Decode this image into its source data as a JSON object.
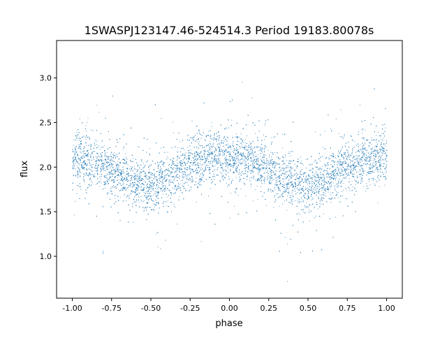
{
  "chart_data": {
    "type": "scatter",
    "title": "1SWASPJ123147.46-524514.3 Period 19183.80078s",
    "xlabel": "phase",
    "ylabel": "flux",
    "xlim": [
      -1.1,
      1.1
    ],
    "ylim": [
      0.53,
      3.42
    ],
    "xticks": [
      "-1.00",
      "-0.75",
      "-0.50",
      "-0.25",
      "0.00",
      "0.25",
      "0.50",
      "0.75",
      "1.00"
    ],
    "xtick_values": [
      -1.0,
      -0.75,
      -0.5,
      -0.25,
      0.0,
      0.25,
      0.5,
      0.75,
      1.0
    ],
    "yticks": [
      "1.0",
      "1.5",
      "2.0",
      "2.5",
      "3.0"
    ],
    "ytick_values": [
      1.0,
      1.5,
      2.0,
      2.5,
      3.0
    ],
    "grid": false,
    "point_color": "#1f77b4",
    "binned_trend": {
      "phase": [
        -1.0,
        -0.875,
        -0.75,
        -0.625,
        -0.5,
        -0.375,
        -0.25,
        -0.125,
        0.0,
        0.125,
        0.25,
        0.375,
        0.5,
        0.625,
        0.75,
        0.875,
        1.0
      ],
      "flux": [
        2.1,
        2.07,
        1.98,
        1.86,
        1.79,
        1.88,
        2.03,
        2.1,
        2.13,
        2.08,
        1.98,
        1.85,
        1.78,
        1.88,
        2.03,
        2.09,
        2.11
      ]
    }
  }
}
